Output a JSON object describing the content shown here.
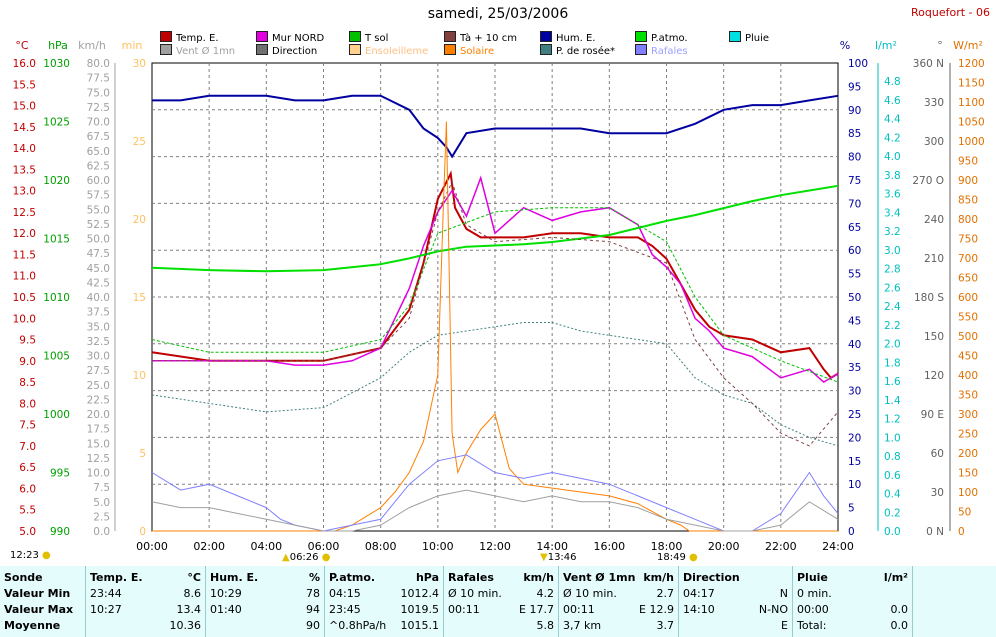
{
  "title": "samedi, 25/03/2006",
  "station": "Roquefort - 06",
  "legend": [
    {
      "label": "Temp. E.",
      "color": "#c00000"
    },
    {
      "label": "Mur NORD",
      "color": "#e000e0"
    },
    {
      "label": "T sol",
      "color": "#00c000"
    },
    {
      "label": "Tà + 10 cm",
      "color": "#804040"
    },
    {
      "label": "Hum. E.",
      "color": "#0000a0"
    },
    {
      "label": "P.atmo.",
      "color": "#00e000"
    },
    {
      "label": "Pluie",
      "color": "#00e0e0"
    },
    {
      "label": "Vent Ø 1mn",
      "color": "#a0a0a0"
    },
    {
      "label": "Direction",
      "color": "#707070"
    },
    {
      "label": "Ensoleilleme",
      "color": "#ffd090"
    },
    {
      "label": "Solaire",
      "color": "#ff8000"
    },
    {
      "label": "P. de rosée*",
      "color": "#408080"
    },
    {
      "label": "Rafales",
      "color": "#8080ff"
    }
  ],
  "axes": {
    "temp": {
      "unit": "°C",
      "ticks": [
        "16.0",
        "15.5",
        "15.0",
        "14.5",
        "14.0",
        "13.5",
        "13.0",
        "12.5",
        "12.0",
        "11.5",
        "11.0",
        "10.5",
        "10.0",
        "9.5",
        "9.0",
        "8.5",
        "8.0",
        "7.5",
        "7.0",
        "6.5",
        "6.0",
        "5.5",
        "5.0"
      ],
      "color": "#c00000"
    },
    "press": {
      "unit": "hPa",
      "ticks": [
        "1030",
        "1025",
        "1020",
        "1015",
        "1010",
        "1005",
        "1000",
        "995",
        "990"
      ],
      "color": "#00a000"
    },
    "wind": {
      "unit": "km/h",
      "ticks": [
        "80.0",
        "77.5",
        "75.0",
        "72.5",
        "70.0",
        "67.5",
        "65.0",
        "62.5",
        "60.0",
        "57.5",
        "55.0",
        "52.5",
        "50.0",
        "47.5",
        "45.0",
        "42.5",
        "40.0",
        "37.5",
        "35.0",
        "32.5",
        "30.0",
        "27.5",
        "25.0",
        "22.5",
        "20.0",
        "17.5",
        "15.0",
        "12.5",
        "10.0",
        "7.5",
        "5.0",
        "2.5",
        "0.0"
      ],
      "color": "#808080"
    },
    "sun": {
      "unit": "min",
      "ticks": [
        "30",
        "25",
        "20",
        "15",
        "10",
        "5",
        "0"
      ],
      "color": "#ffc060"
    },
    "hum": {
      "unit": "%",
      "ticks": [
        "100",
        "95",
        "90",
        "85",
        "80",
        "75",
        "70",
        "65",
        "60",
        "55",
        "50",
        "45",
        "40",
        "35",
        "30",
        "25",
        "20",
        "15",
        "10",
        "5",
        "0"
      ],
      "color": "#0000a0"
    },
    "rain": {
      "unit": "l/m²",
      "ticks": [
        "4.8",
        "4.6",
        "4.4",
        "4.2",
        "4.0",
        "3.8",
        "3.6",
        "3.4",
        "3.2",
        "3.0",
        "2.8",
        "2.6",
        "2.4",
        "2.2",
        "2.0",
        "1.8",
        "1.6",
        "1.4",
        "1.2",
        "1.0",
        "0.8",
        "0.6",
        "0.4",
        "0.2",
        "0.0"
      ],
      "color": "#00c0c0"
    },
    "dir": {
      "unit": "°",
      "ticks": [
        "360 N",
        "330",
        "300",
        "270 O",
        "240",
        "210",
        "180 S",
        "150",
        "120",
        "90 E",
        "60",
        "30",
        "0 N"
      ],
      "color": "#606060"
    },
    "solar": {
      "unit": "W/m²",
      "ticks": [
        "1200",
        "1150",
        "1100",
        "1050",
        "1000",
        "950",
        "900",
        "850",
        "800",
        "750",
        "700",
        "650",
        "600",
        "550",
        "500",
        "450",
        "400",
        "350",
        "300",
        "250",
        "200",
        "150",
        "100",
        "50",
        "0"
      ],
      "color": "#e07000"
    },
    "time": {
      "ticks": [
        "00:00",
        "02:00",
        "04:00",
        "06:00",
        "08:00",
        "10:00",
        "12:00",
        "14:00",
        "16:00",
        "18:00",
        "20:00",
        "22:00",
        "24:00"
      ]
    }
  },
  "sun_marks": {
    "left": "12:23",
    "rise": "06:26",
    "noon": "13:46",
    "set": "18:49"
  },
  "chart_data": {
    "type": "line",
    "title": "samedi, 25/03/2006",
    "x_range": [
      "00:00",
      "24:00"
    ],
    "series": [
      {
        "name": "Temp. E.",
        "unit": "°C",
        "x": [
          0,
          2,
          4,
          6,
          8,
          9,
          9.5,
          10,
          10.3,
          10.45,
          10.6,
          11,
          11.5,
          12,
          13,
          14,
          15,
          16,
          17,
          17.5,
          18,
          18.5,
          19,
          19.5,
          20,
          21,
          22,
          23,
          23.5,
          23.75,
          24
        ],
        "y": [
          9.2,
          9.0,
          9.0,
          9.0,
          9.3,
          10.2,
          11.3,
          12.8,
          13.2,
          13.4,
          12.6,
          12.1,
          11.9,
          11.9,
          11.9,
          12.0,
          12.0,
          11.9,
          11.9,
          11.7,
          11.4,
          10.8,
          10.2,
          9.8,
          9.6,
          9.5,
          9.2,
          9.3,
          8.8,
          8.6,
          8.7
        ]
      },
      {
        "name": "Mur NORD",
        "unit": "°C",
        "x": [
          0,
          2,
          4,
          5,
          6,
          7,
          8,
          9,
          9.5,
          10,
          10.5,
          11,
          11.5,
          12,
          13,
          14,
          15,
          16,
          17,
          17.5,
          18,
          18.5,
          19,
          19.5,
          20,
          21,
          22,
          23,
          23.5,
          24
        ],
        "y": [
          9.0,
          9.0,
          9.0,
          8.9,
          8.9,
          9.0,
          9.3,
          10.7,
          11.7,
          12.5,
          13.0,
          12.4,
          13.3,
          12.0,
          12.6,
          12.3,
          12.5,
          12.6,
          12.2,
          11.5,
          11.2,
          10.8,
          10.0,
          9.7,
          9.3,
          9.1,
          8.6,
          8.8,
          8.5,
          8.7
        ]
      },
      {
        "name": "Hum. E.",
        "unit": "%",
        "x": [
          0,
          1,
          2,
          3,
          4,
          5,
          6,
          7,
          8,
          9,
          9.5,
          10,
          10.3,
          10.5,
          11,
          12,
          13,
          14,
          15,
          16,
          17,
          18,
          19,
          20,
          21,
          22,
          23,
          24
        ],
        "y": [
          92,
          92,
          93,
          93,
          93,
          92,
          92,
          93,
          93,
          90,
          86,
          84,
          82,
          80,
          85,
          86,
          86,
          86,
          86,
          85,
          85,
          85,
          87,
          90,
          91,
          91,
          92,
          93
        ]
      },
      {
        "name": "P.atmo.",
        "unit": "hPa",
        "x": [
          0,
          2,
          4,
          6,
          8,
          9,
          10,
          11,
          12,
          13,
          14,
          15,
          16,
          17,
          18,
          19,
          20,
          21,
          22,
          23,
          24
        ],
        "y": [
          1012.5,
          1012.3,
          1012.2,
          1012.3,
          1012.8,
          1013.3,
          1013.9,
          1014.3,
          1014.4,
          1014.5,
          1014.7,
          1015.0,
          1015.3,
          1015.9,
          1016.5,
          1017.0,
          1017.6,
          1018.2,
          1018.7,
          1019.1,
          1019.5
        ]
      },
      {
        "name": "T sol",
        "unit": "°C",
        "x": [
          0,
          2,
          4,
          6,
          8,
          9,
          10,
          12,
          14,
          16,
          18,
          19,
          20,
          22,
          24
        ],
        "y": [
          9.5,
          9.2,
          9.2,
          9.2,
          9.5,
          10.3,
          12.0,
          12.5,
          12.6,
          12.6,
          11.8,
          10.5,
          9.6,
          9.0,
          8.5
        ]
      },
      {
        "name": "P. de rosée*",
        "unit": "°C",
        "x": [
          0,
          2,
          4,
          6,
          8,
          9,
          10,
          11,
          12,
          13,
          14,
          15,
          16,
          17,
          18,
          19,
          20,
          21,
          22,
          23,
          24
        ],
        "y": [
          8.2,
          8.0,
          7.8,
          7.9,
          8.6,
          9.2,
          9.6,
          9.7,
          9.8,
          9.9,
          9.9,
          9.7,
          9.6,
          9.5,
          9.4,
          8.6,
          8.2,
          8.0,
          7.5,
          7.2,
          7.0
        ]
      },
      {
        "name": "Tà + 10 cm",
        "unit": "°C",
        "x": [
          0,
          6,
          8,
          9,
          10,
          10.5,
          11,
          12,
          14,
          16,
          18,
          19,
          20,
          21,
          22,
          23,
          24
        ],
        "y": [
          9.0,
          9.0,
          9.3,
          10.0,
          12.5,
          13.2,
          12.2,
          11.8,
          11.9,
          11.8,
          11.3,
          9.5,
          8.6,
          8.0,
          7.3,
          7.0,
          7.8
        ]
      },
      {
        "name": "Solaire",
        "unit": "W/m²",
        "x": [
          0,
          6.4,
          7,
          8,
          8.5,
          9,
          9.5,
          10,
          10.2,
          10.3,
          10.4,
          10.5,
          10.7,
          11,
          11.5,
          12,
          12.5,
          13,
          14,
          15,
          16,
          17,
          18,
          18.5,
          18.8,
          24
        ],
        "y": [
          0,
          0,
          15,
          60,
          100,
          150,
          230,
          400,
          850,
          1050,
          650,
          250,
          150,
          200,
          260,
          300,
          160,
          120,
          110,
          100,
          90,
          70,
          30,
          15,
          0,
          0
        ]
      },
      {
        "name": "Rafales",
        "unit": "km/h",
        "x": [
          0,
          1,
          2,
          3,
          4,
          4.5,
          5,
          6,
          7,
          8,
          9,
          10,
          11,
          12,
          13,
          14,
          15,
          16,
          17,
          18,
          19,
          20,
          21,
          22,
          23,
          23.5,
          24
        ],
        "y": [
          10,
          7,
          8,
          6,
          4,
          2,
          1,
          0,
          1,
          2,
          8,
          12,
          13,
          10,
          9,
          10,
          9,
          8,
          6,
          4,
          2,
          0,
          0,
          3,
          10,
          6,
          3
        ]
      },
      {
        "name": "Vent Ø 1mn",
        "unit": "km/h",
        "x": [
          0,
          1,
          2,
          3,
          4,
          5,
          6,
          7,
          8,
          9,
          10,
          11,
          12,
          13,
          14,
          15,
          16,
          17,
          18,
          19,
          20,
          21,
          22,
          23,
          24
        ],
        "y": [
          5,
          4,
          4,
          3,
          2,
          1,
          0,
          0,
          1,
          4,
          6,
          7,
          6,
          5,
          6,
          5,
          5,
          4,
          2,
          1,
          0,
          0,
          1,
          5,
          2
        ]
      }
    ]
  },
  "footer": {
    "sonde": {
      "head": "Sonde",
      "r1": "Valeur Min",
      "r2": "Valeur Max",
      "r3": "Moyenne"
    },
    "temp": {
      "head": "Temp. E.",
      "unit": "°C",
      "r1a": "23:44",
      "r1b": "8.6",
      "r2a": "10:27",
      "r2b": "13.4",
      "r3a": "",
      "r3b": "10.36"
    },
    "hum": {
      "head": "Hum. E.",
      "unit": "%",
      "r1a": "10:29",
      "r1b": "78",
      "r2a": "01:40",
      "r2b": "94",
      "r3a": "",
      "r3b": "90"
    },
    "press": {
      "head": "P.atmo.",
      "unit": "hPa",
      "r1a": "04:15",
      "r1b": "1012.4",
      "r2a": "23:45",
      "r2b": "1019.5",
      "r3a": "^0.8hPa/h",
      "r3b": "1015.1"
    },
    "gust": {
      "head": "Rafales",
      "unit": "km/h",
      "r1a": "Ø 10 min.",
      "r1b": "4.2",
      "r2a": "00:11",
      "r2b": "E 17.7",
      "r3a": "",
      "r3b": "5.8"
    },
    "wind": {
      "head": "Vent Ø 1mn",
      "unit": "km/h",
      "r1a": "Ø 10 min.",
      "r1b": "2.7",
      "r2a": "00:11",
      "r2b": "E 12.9",
      "r3a": "3,7 km",
      "r3b": "3.7"
    },
    "dir": {
      "head": "Direction",
      "unit": "",
      "r1a": "04:17",
      "r1b": "N",
      "r2a": "14:10",
      "r2b": "N-NO",
      "r3a": "",
      "r3b": "E"
    },
    "rain": {
      "head": "Pluie",
      "unit": "l/m²",
      "r1a": "0 min.",
      "r1b": "",
      "r2a": "00:00",
      "r2b": "0.0",
      "r3a": "Total:",
      "r3b": "0.0"
    }
  }
}
